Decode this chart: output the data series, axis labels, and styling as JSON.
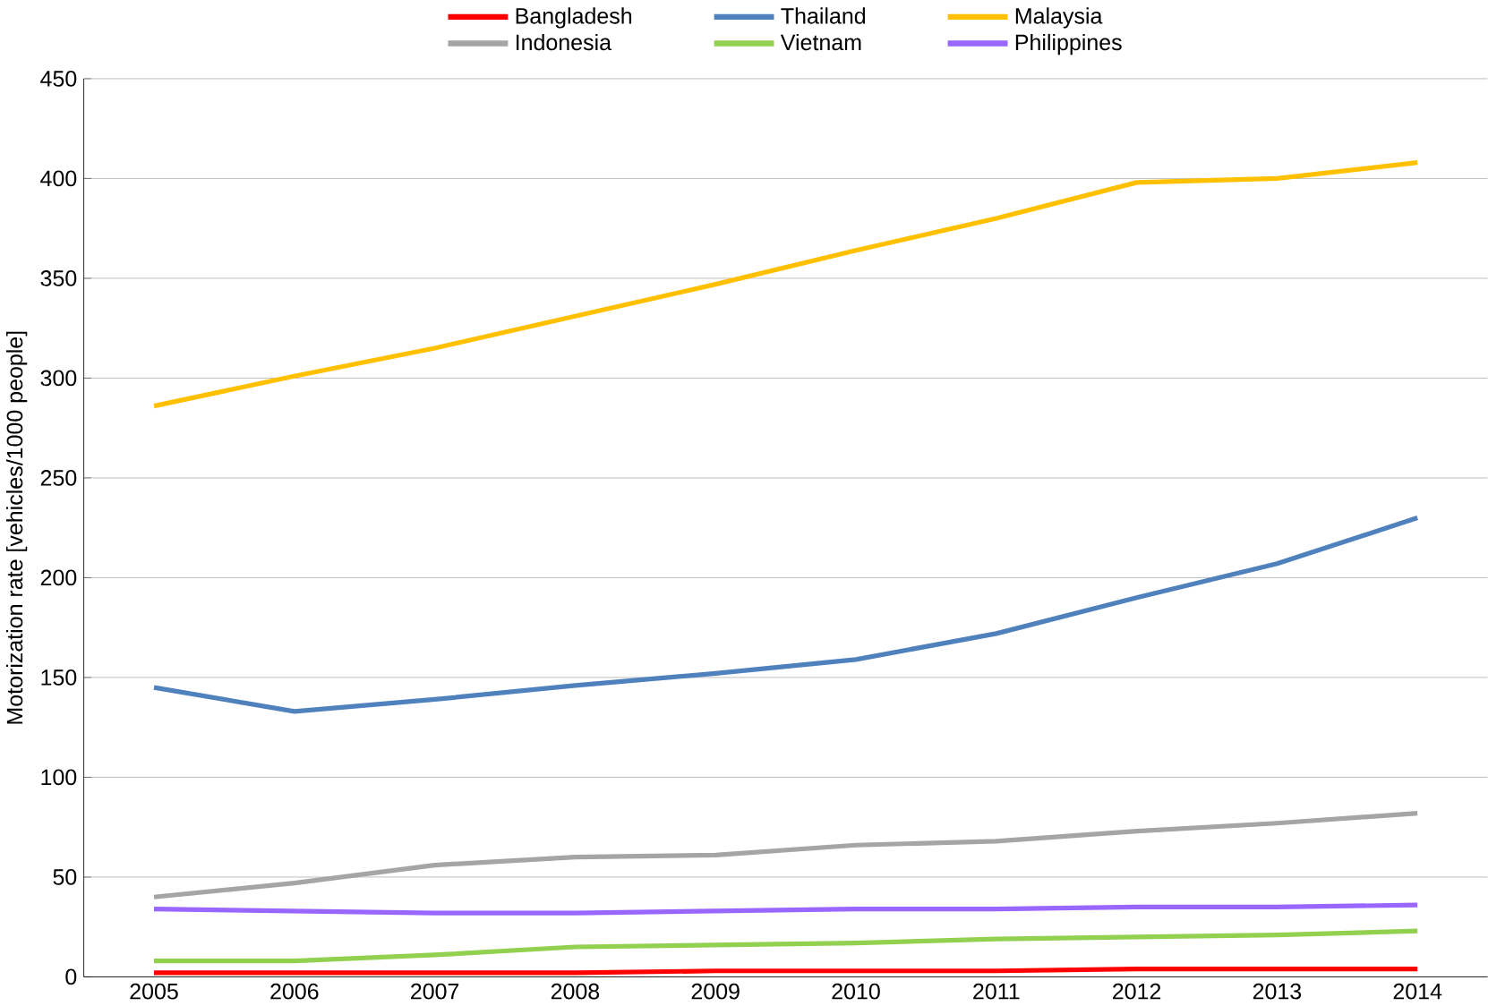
{
  "chart_data": {
    "type": "line",
    "ylabel": "Motorization rate [vehicles/1000 people]",
    "categories": [
      "2005",
      "2006",
      "2007",
      "2008",
      "2009",
      "2010",
      "2011",
      "2012",
      "2013",
      "2014"
    ],
    "series": [
      {
        "name": "Bangladesh",
        "color": "#ff0000",
        "values": [
          2,
          2,
          2,
          2,
          3,
          3,
          3,
          4,
          4,
          4
        ]
      },
      {
        "name": "Thailand",
        "color": "#4f81bd",
        "values": [
          145,
          133,
          139,
          146,
          152,
          159,
          172,
          190,
          207,
          230
        ]
      },
      {
        "name": "Malaysia",
        "color": "#ffc000",
        "values": [
          286,
          301,
          315,
          331,
          347,
          364,
          380,
          398,
          400,
          408
        ]
      },
      {
        "name": "Indonesia",
        "color": "#a5a5a5",
        "values": [
          40,
          47,
          56,
          60,
          61,
          66,
          68,
          73,
          77,
          82
        ]
      },
      {
        "name": "Vietnam",
        "color": "#92d050",
        "values": [
          8,
          8,
          11,
          15,
          16,
          17,
          19,
          20,
          21,
          23
        ]
      },
      {
        "name": "Philippines",
        "color": "#9966ff",
        "values": [
          34,
          33,
          32,
          32,
          33,
          34,
          34,
          35,
          35,
          36
        ]
      }
    ],
    "ylim": [
      0,
      450
    ],
    "yticks": [
      0,
      50,
      100,
      150,
      200,
      250,
      300,
      350,
      400,
      450
    ],
    "grid": "y",
    "legend": "top",
    "marker": "none",
    "line_style": "solid"
  }
}
